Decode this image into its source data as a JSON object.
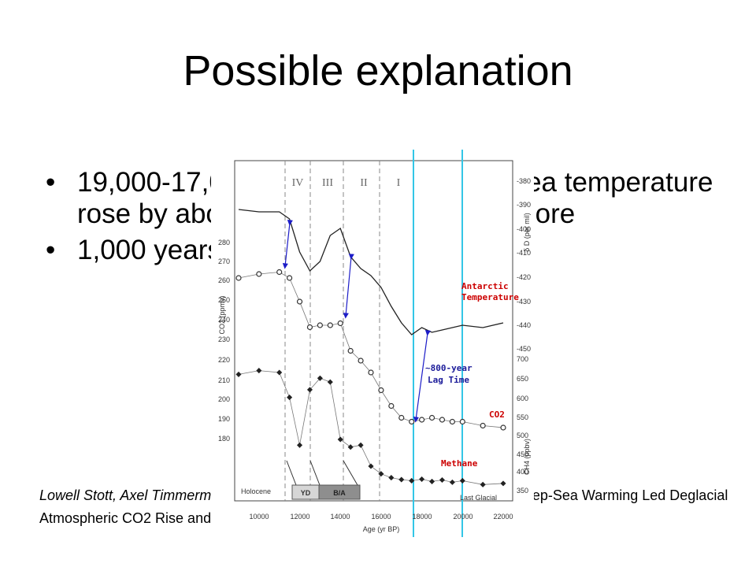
{
  "slide": {
    "title": "Possible explanation",
    "bullets": [
      "19,000-17,000 years ago, Antarctic sea temperature rose by about 2 Celsius degrees or more",
      "1,000 years later, CO2 levels rises"
    ],
    "citation_authors": "Lowell Stott, Axel Timmermann, Robert Thunell",
    "citation_title": "\"Southern Hemisphere and Deep-Sea Warming Led Deglacial Atmospheric CO2 Rise and Tropical Warming\""
  },
  "figure": {
    "periods": [
      "IV",
      "III",
      "II",
      "I"
    ],
    "left_axis_ticks": [
      "280",
      "270",
      "260",
      "250",
      "240",
      "230",
      "220",
      "210",
      "200",
      "190",
      "180"
    ],
    "left_axis_label": "CO2 (ppmv)",
    "right_axis_ticks_top": [
      "-380",
      "-390",
      "-400",
      "-410",
      "-420",
      "-430",
      "-440",
      "-450"
    ],
    "right_axis_label_top": "δ D (per mil)",
    "right_axis_ticks_bottom": [
      "700",
      "650",
      "600",
      "550",
      "500",
      "450",
      "400",
      "350"
    ],
    "right_axis_label_bottom": "CH4 (ppbv)",
    "x_ticks": [
      "10000",
      "12000",
      "14000",
      "16000",
      "18000",
      "20000",
      "22000"
    ],
    "x_label": "Age (yr BP)",
    "labels": {
      "antarctic": "Antarctic",
      "temperature": "Temperature",
      "lag1": "~800-year",
      "lag2": "Lag Time",
      "co2": "CO2",
      "methane": "Methane",
      "holocene": "Holocene",
      "yd": "YD",
      "ba": "B/A",
      "last_glacial": "Last Glacial"
    },
    "colors": {
      "highlight_line": "#33c6e6",
      "arrow": "#1c1cc8",
      "label_red": "#cc0000",
      "label_blue": "#1a1a99"
    }
  },
  "chart_data": {
    "type": "line",
    "x_label": "Age (yr BP)",
    "xlim": [
      9000,
      22000
    ],
    "series": [
      {
        "name": "Antarctic Temperature",
        "axis": "δ D (per mil)",
        "x": [
          9000,
          10000,
          11000,
          11500,
          12000,
          12500,
          13000,
          13500,
          14000,
          14500,
          15000,
          15500,
          16000,
          16500,
          17000,
          17500,
          18000,
          18500,
          19000,
          19500,
          20000,
          21000,
          22000
        ],
        "y": [
          -392,
          -393,
          -393,
          -396,
          -410,
          -418,
          -414,
          -403,
          -400,
          -412,
          -417,
          -420,
          -425,
          -433,
          -440,
          -445,
          -442,
          -444,
          -443,
          -442,
          -441,
          -442,
          -440
        ]
      },
      {
        "name": "CO2",
        "axis": "CO2 (ppmv)",
        "x": [
          9000,
          10000,
          11000,
          11500,
          12000,
          12500,
          13000,
          13500,
          14000,
          14500,
          15000,
          15500,
          16000,
          16500,
          17000,
          17500,
          18000,
          18500,
          19000,
          19500,
          20000,
          21000,
          22000
        ],
        "y": [
          262,
          264,
          265,
          262,
          250,
          237,
          238,
          238,
          239,
          225,
          220,
          214,
          205,
          197,
          191,
          189,
          190,
          191,
          190,
          189,
          189,
          187,
          186
        ]
      },
      {
        "name": "Methane",
        "axis": "CH4 (ppbv)",
        "x": [
          9000,
          10000,
          11000,
          11500,
          12000,
          12500,
          13000,
          13500,
          14000,
          14500,
          15000,
          15500,
          16000,
          16500,
          17000,
          17500,
          18000,
          18500,
          19000,
          19500,
          20000,
          21000,
          22000
        ],
        "y": [
          660,
          670,
          665,
          600,
          475,
          620,
          650,
          640,
          490,
          470,
          475,
          420,
          400,
          390,
          385,
          382,
          386,
          380,
          384,
          378,
          382,
          372,
          375
        ]
      }
    ]
  }
}
